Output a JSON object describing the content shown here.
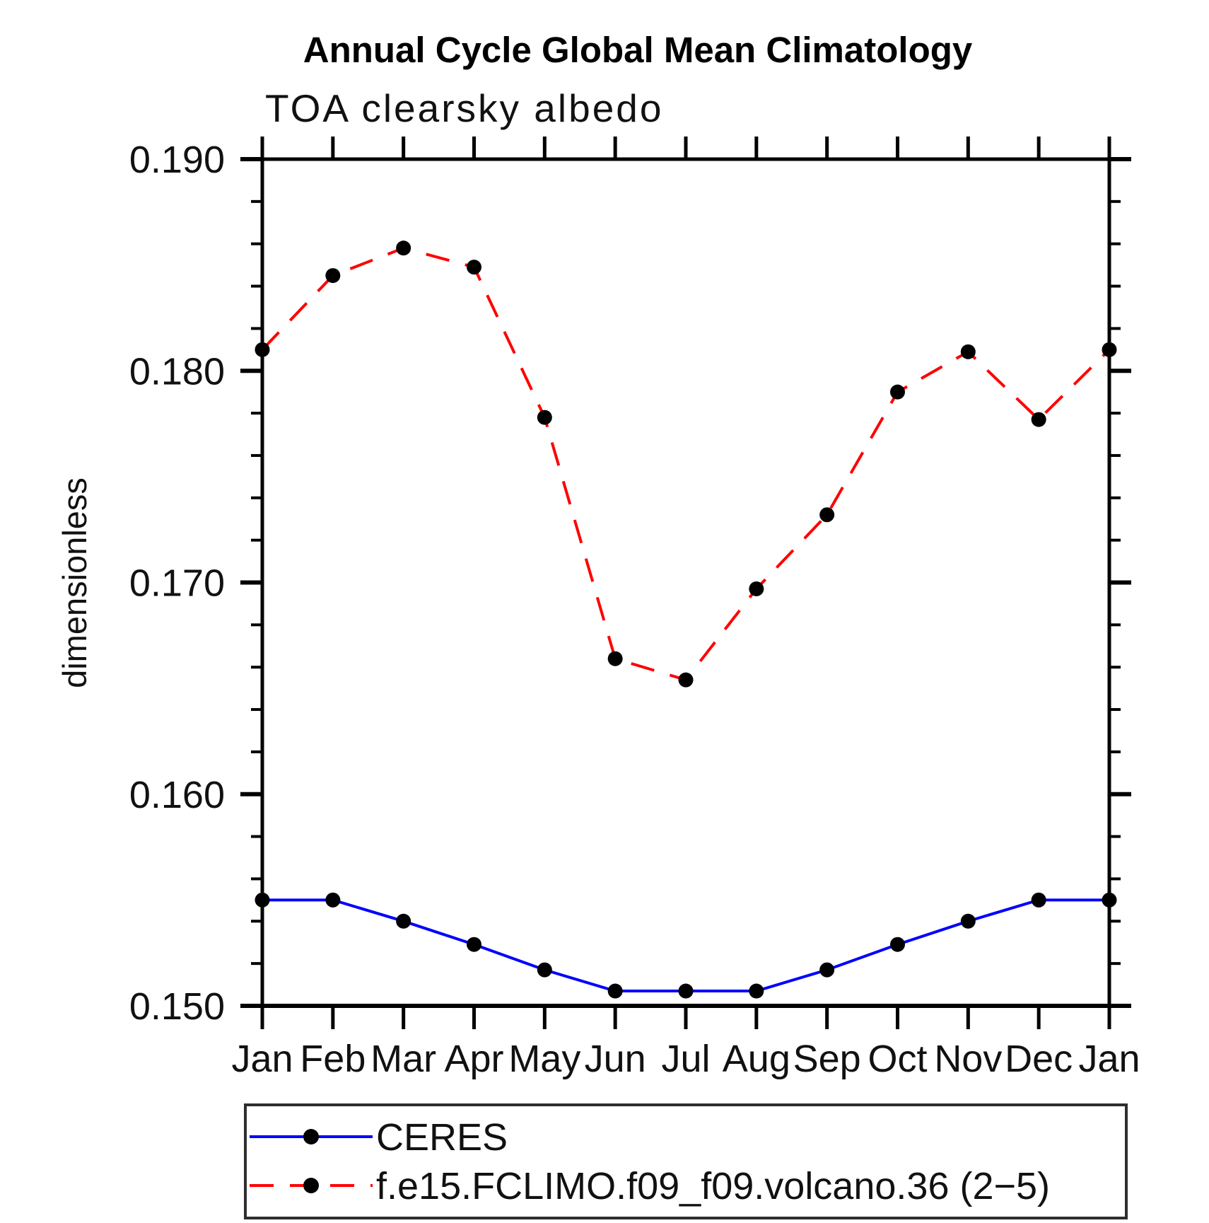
{
  "chart_data": {
    "type": "line",
    "title": "Annual Cycle Global Mean Climatology",
    "subtitle": "TOA clearsky albedo",
    "ylabel": "dimensionless",
    "x_categories": [
      "Jan",
      "Feb",
      "Mar",
      "Apr",
      "May",
      "Jun",
      "Jul",
      "Aug",
      "Sep",
      "Oct",
      "Nov",
      "Dec",
      "Jan"
    ],
    "ylim": [
      0.15,
      0.19
    ],
    "ytick_values": [
      0.19,
      0.18,
      0.17,
      0.16,
      0.15
    ],
    "ytick_labels": [
      "0.190",
      "0.180",
      "0.170",
      "0.160",
      "0.150"
    ],
    "minor_tick_step": 0.002,
    "grid": "off",
    "legend_position": "bottom",
    "marker_color": "#000000",
    "series": [
      {
        "name": "CERES",
        "color": "#0000ff",
        "style": "solid",
        "marker": "circle",
        "values": [
          0.155,
          0.155,
          0.154,
          0.1529,
          0.1517,
          0.1507,
          0.1507,
          0.1507,
          0.1517,
          0.1529,
          0.154,
          0.155,
          0.155
        ]
      },
      {
        "name": "f.e15.FCLIMO.f09_f09.volcano.36 (2−5)",
        "color": "#ff0000",
        "style": "dashed",
        "marker": "circle",
        "values": [
          0.181,
          0.1845,
          0.1858,
          0.1849,
          0.1778,
          0.1664,
          0.1654,
          0.1697,
          0.1732,
          0.179,
          0.1809,
          0.1777,
          0.181
        ]
      }
    ]
  }
}
